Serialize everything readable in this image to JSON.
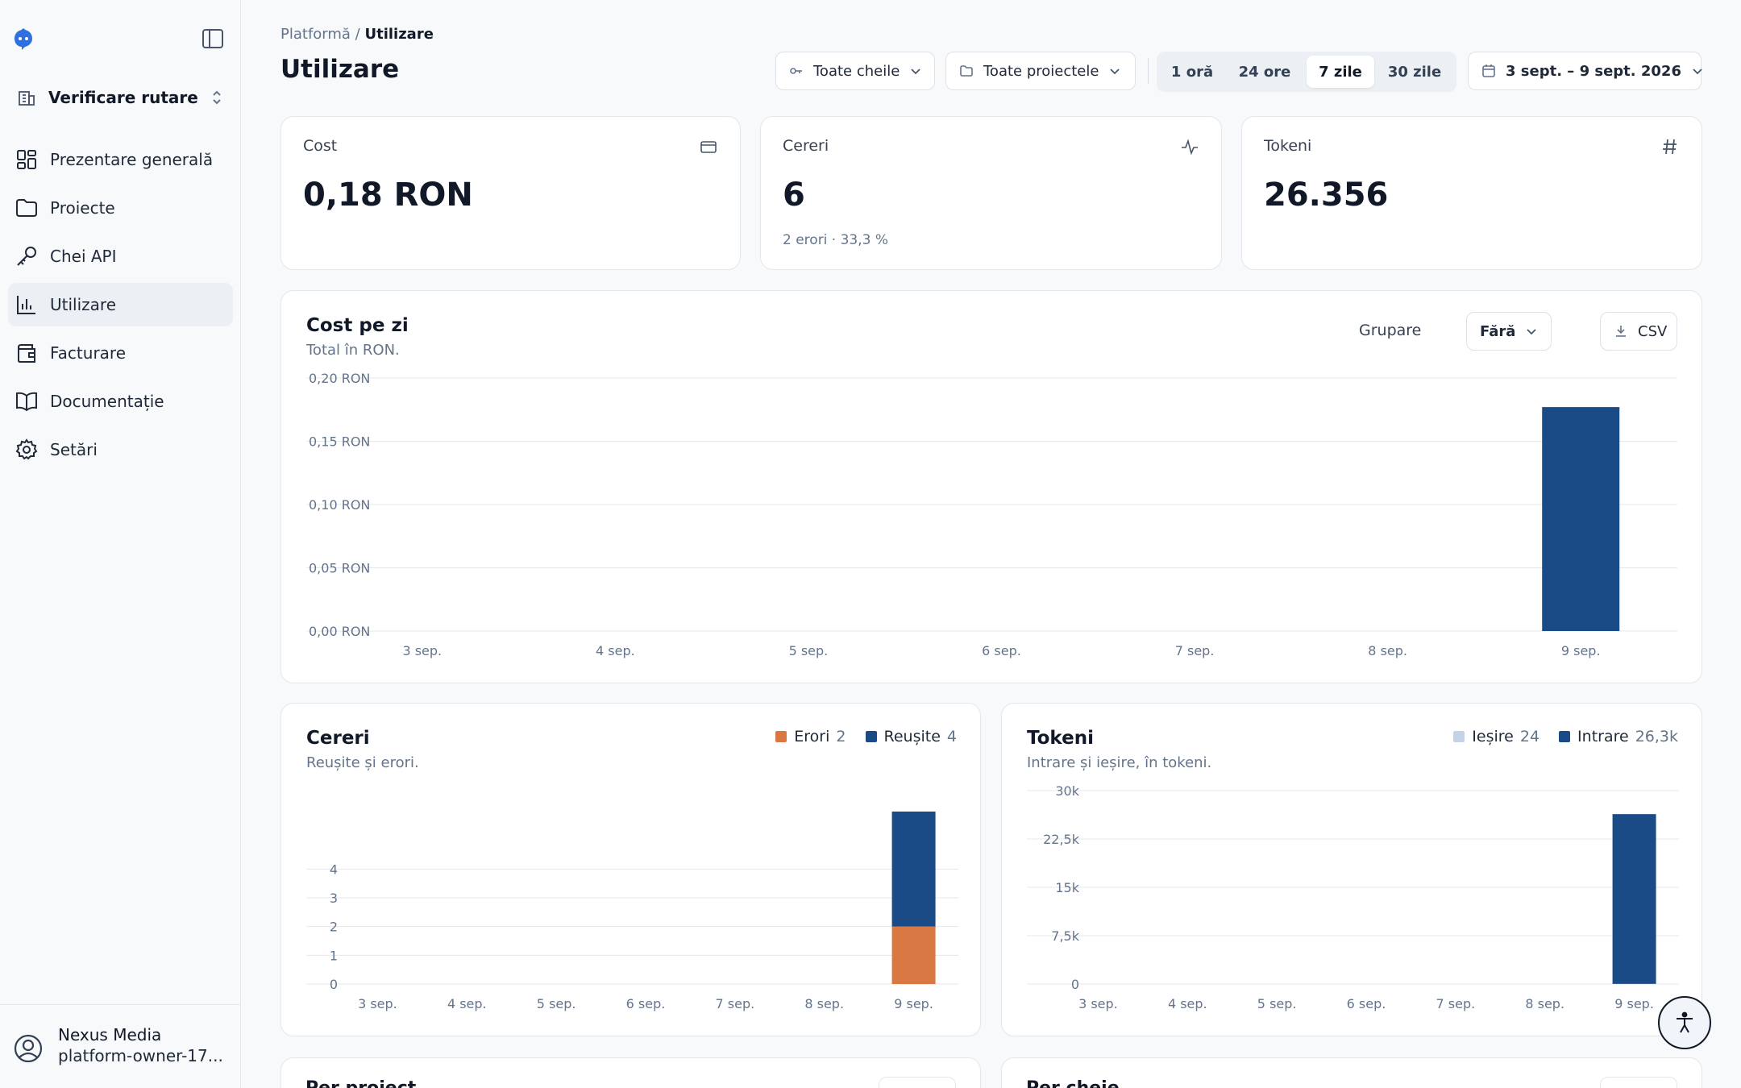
{
  "sidebar": {
    "org_name": "Verificare rutare",
    "items": [
      {
        "label": "Prezentare generală",
        "icon": "dashboard-icon"
      },
      {
        "label": "Proiecte",
        "icon": "folder-icon"
      },
      {
        "label": "Chei API",
        "icon": "key-icon"
      },
      {
        "label": "Utilizare",
        "icon": "bar-chart-icon",
        "active": true
      },
      {
        "label": "Facturare",
        "icon": "wallet-icon"
      },
      {
        "label": "Documentație",
        "icon": "book-icon"
      },
      {
        "label": "Setări",
        "icon": "gear-icon"
      }
    ],
    "account": {
      "name": "Nexus Media",
      "email": "platform-owner-17..."
    }
  },
  "header": {
    "breadcrumb_parent": "Platformă",
    "breadcrumb_sep": " / ",
    "breadcrumb_current": "Utilizare",
    "title": "Utilizare",
    "key_filter": "Toate cheile",
    "project_filter": "Toate proiectele",
    "ranges": [
      "1 oră",
      "24 ore",
      "7 zile",
      "30 zile"
    ],
    "selected_range": "7 zile",
    "date_range": "3 sept. – 9 sept. 2026"
  },
  "stats": {
    "cost": {
      "label": "Cost",
      "value": "0,18 RON",
      "icon": "credit-card-icon"
    },
    "requests": {
      "label": "Cereri",
      "value": "6",
      "sub": "2 erori · 33,3 %",
      "icon": "activity-icon"
    },
    "tokens": {
      "label": "Tokeni",
      "value": "26.356",
      "icon": "hash-icon"
    }
  },
  "cost_chart": {
    "title": "Cost pe zi",
    "subtitle": "Total în RON.",
    "group_label": "Grupare",
    "group_value": "Fără",
    "csv_label": "CSV"
  },
  "requests_chart": {
    "title": "Cereri",
    "subtitle": "Reușite și erori.",
    "legend": [
      {
        "label": "Erori",
        "count": "2",
        "color": "#d97843"
      },
      {
        "label": "Reușite",
        "count": "4",
        "color": "#1b4b87"
      }
    ]
  },
  "tokens_chart": {
    "title": "Tokeni",
    "subtitle": "Intrare și ieșire, în tokeni.",
    "legend": [
      {
        "label": "Ieșire",
        "count": "24",
        "color": "#c5d3e6"
      },
      {
        "label": "Intrare",
        "count": "26,3k",
        "color": "#1b4b87"
      }
    ]
  },
  "bottom_cards": {
    "left_title": "Per proiect",
    "right_title": "Per cheie"
  },
  "colors": {
    "primary": "#1b4b87",
    "error": "#d97843",
    "output": "#c5d3e6",
    "grid": "#e5e7eb"
  },
  "chart_data": [
    {
      "type": "bar",
      "title": "Cost pe zi",
      "subtitle": "Total în RON.",
      "categories": [
        "3 sep.",
        "4 sep.",
        "5 sep.",
        "6 sep.",
        "7 sep.",
        "8 sep.",
        "9 sep."
      ],
      "values": [
        0,
        0,
        0,
        0,
        0,
        0,
        0.177
      ],
      "ylim": [
        0,
        0.2
      ],
      "yticks": [
        "0,00 RON",
        "0,05 RON",
        "0,10 RON",
        "0,15 RON",
        "0,20 RON"
      ],
      "grid": true
    },
    {
      "type": "bar",
      "stacked": true,
      "title": "Cereri",
      "subtitle": "Reușite și erori.",
      "categories": [
        "3 sep.",
        "4 sep.",
        "5 sep.",
        "6 sep.",
        "7 sep.",
        "8 sep.",
        "9 sep."
      ],
      "series": [
        {
          "name": "Erori",
          "values": [
            0,
            0,
            0,
            0,
            0,
            0,
            2
          ]
        },
        {
          "name": "Reușite",
          "values": [
            0,
            0,
            0,
            0,
            0,
            0,
            4
          ]
        }
      ],
      "ylim": [
        0,
        6
      ],
      "yticks": [
        "0",
        "1",
        "2",
        "3",
        "4"
      ],
      "legend": "top-right",
      "grid": true
    },
    {
      "type": "bar",
      "stacked": true,
      "title": "Tokeni",
      "subtitle": "Intrare și ieșire, în tokeni.",
      "categories": [
        "3 sep.",
        "4 sep.",
        "5 sep.",
        "6 sep.",
        "7 sep.",
        "8 sep.",
        "9 sep."
      ],
      "series": [
        {
          "name": "Ieșire",
          "values": [
            0,
            0,
            0,
            0,
            0,
            0,
            24
          ]
        },
        {
          "name": "Intrare",
          "values": [
            0,
            0,
            0,
            0,
            0,
            0,
            26332
          ]
        }
      ],
      "ylim": [
        0,
        30000
      ],
      "yticks": [
        "0",
        "7,5k",
        "15k",
        "22,5k",
        "30k"
      ],
      "legend": "top-right",
      "grid": true
    }
  ]
}
